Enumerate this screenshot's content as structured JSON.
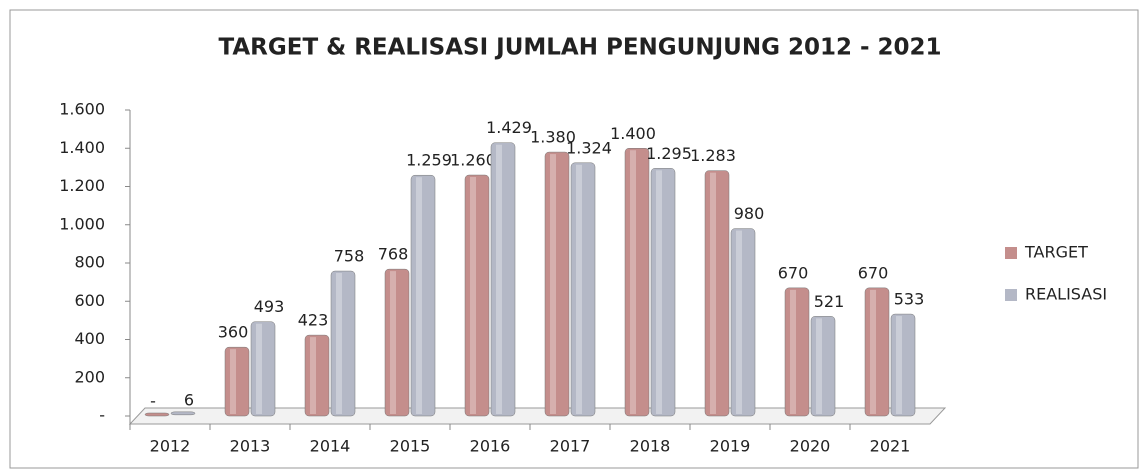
{
  "chart_data": {
    "type": "bar",
    "title": "TARGET & REALISASI JUMLAH PENGUNJUNG 2012 - 2021",
    "categories": [
      "2012",
      "2013",
      "2014",
      "2015",
      "2016",
      "2017",
      "2018",
      "2019",
      "2020",
      "2021"
    ],
    "series": [
      {
        "name": "TARGET",
        "color": "#c48e8c",
        "values": [
          0,
          360,
          423,
          768,
          1260,
          1380,
          1400,
          1283,
          670,
          670
        ],
        "value_labels": [
          "-",
          "360",
          "423",
          "768",
          "1.260",
          "1.380",
          "1.400",
          "1.283",
          "670",
          "670"
        ]
      },
      {
        "name": "REALISASI",
        "color": "#b4b8c6",
        "values": [
          6,
          493,
          758,
          1259,
          1429,
          1324,
          1295,
          980,
          521,
          533
        ],
        "value_labels": [
          "6",
          "493",
          "758",
          "1.259",
          "1.429",
          "1.324",
          "1.295",
          "980",
          "521",
          "533"
        ]
      }
    ],
    "ylim": [
      0,
      1600
    ],
    "yticks": [
      {
        "value": 0,
        "label": "-"
      },
      200,
      400,
      600,
      800,
      {
        "value": 1000,
        "label": "1.000"
      },
      {
        "value": 1200,
        "label": "1.200"
      },
      {
        "value": 1400,
        "label": "1.400"
      },
      {
        "value": 1600,
        "label": "1.600"
      }
    ],
    "legend": "right"
  }
}
